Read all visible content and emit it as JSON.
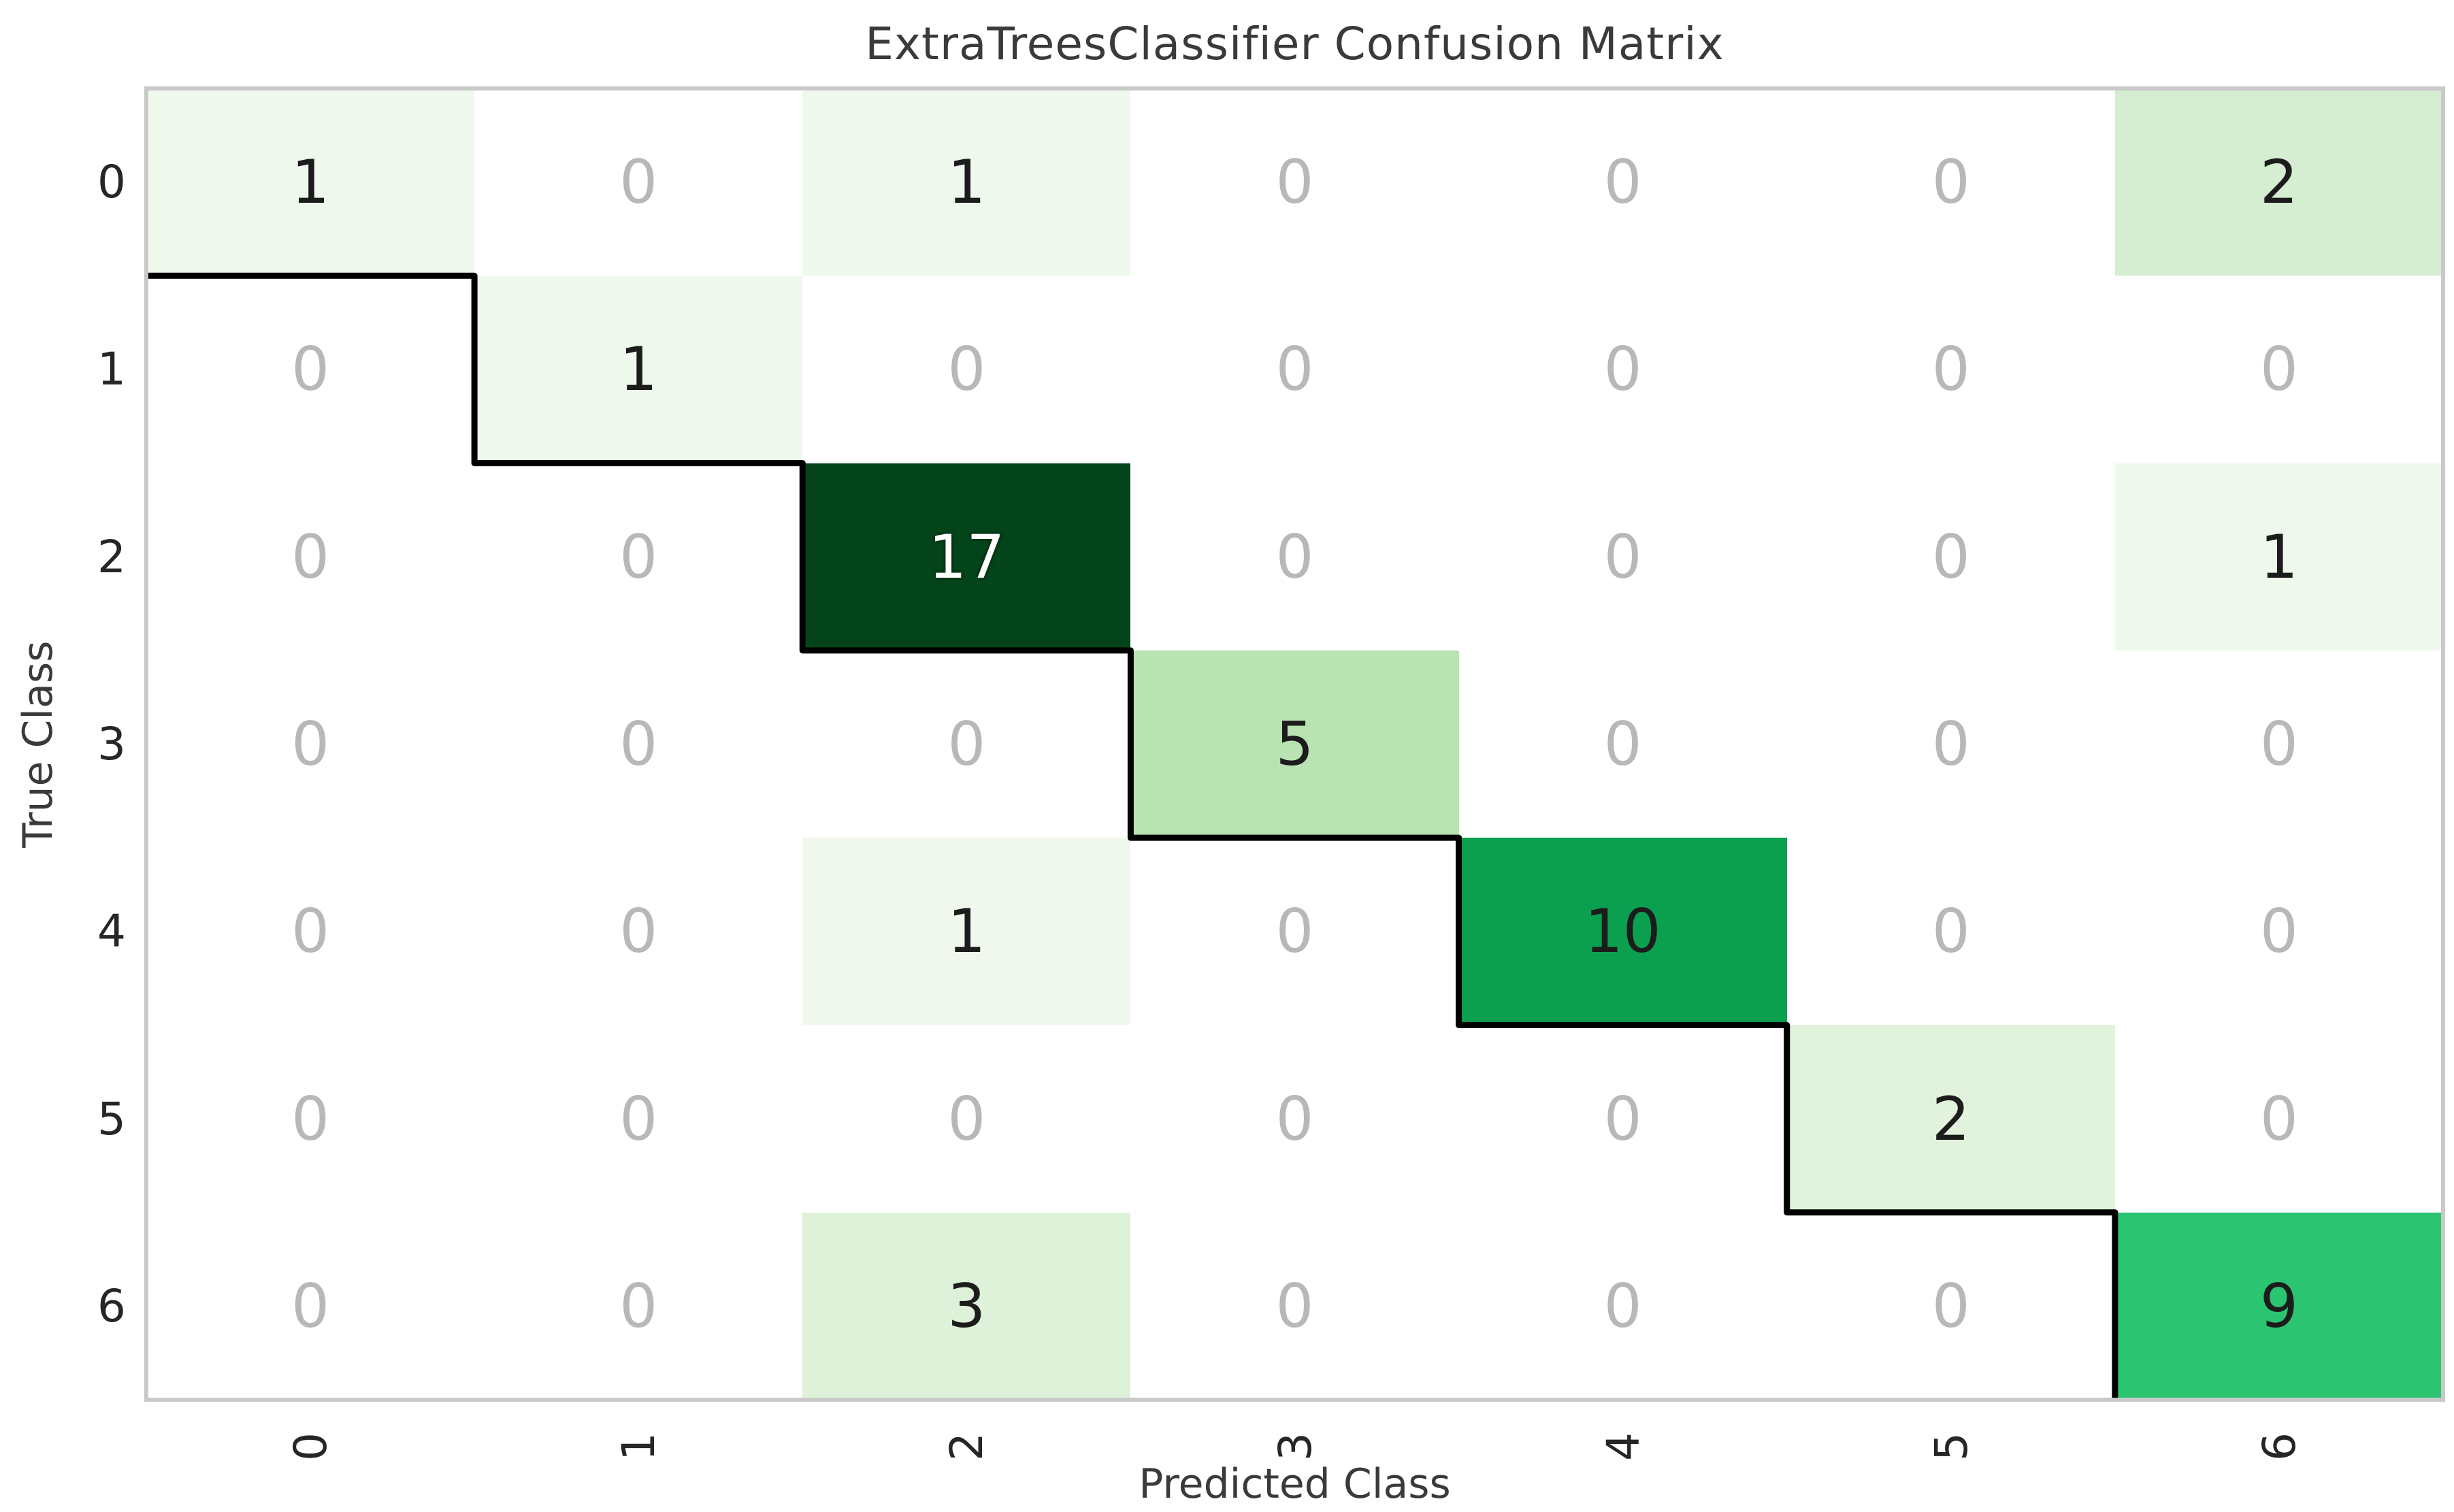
{
  "chart_data": {
    "type": "heatmap",
    "title": "ExtraTreesClassifier Confusion Matrix",
    "xlabel": "Predicted Class",
    "ylabel": "True Class",
    "x_ticklabels": [
      "0",
      "1",
      "2",
      "3",
      "4",
      "5",
      "6"
    ],
    "y_ticklabels": [
      "0",
      "1",
      "2",
      "3",
      "4",
      "5",
      "6"
    ],
    "matrix": [
      [
        1,
        0,
        1,
        0,
        0,
        0,
        2
      ],
      [
        0,
        1,
        0,
        0,
        0,
        0,
        0
      ],
      [
        0,
        0,
        17,
        0,
        0,
        0,
        1
      ],
      [
        0,
        0,
        0,
        5,
        0,
        0,
        0
      ],
      [
        0,
        0,
        1,
        0,
        10,
        0,
        0
      ],
      [
        0,
        0,
        0,
        0,
        0,
        2,
        0
      ],
      [
        0,
        0,
        3,
        0,
        0,
        0,
        9
      ]
    ],
    "value_range": [
      0,
      17
    ],
    "grid": false,
    "legend": "none",
    "cell_colors": [
      [
        "#eff8ed",
        "#ffffff",
        "#eff8ed",
        "#ffffff",
        "#ffffff",
        "#ffffff",
        "#d5edd0"
      ],
      [
        "#ffffff",
        "#eff8ed",
        "#ffffff",
        "#ffffff",
        "#ffffff",
        "#ffffff",
        "#ffffff"
      ],
      [
        "#ffffff",
        "#ffffff",
        "#04441b",
        "#ffffff",
        "#ffffff",
        "#ffffff",
        "#eff8ed"
      ],
      [
        "#ffffff",
        "#ffffff",
        "#ffffff",
        "#b9e3b2",
        "#ffffff",
        "#ffffff",
        "#ffffff"
      ],
      [
        "#ffffff",
        "#ffffff",
        "#f0f8ee",
        "#ffffff",
        "#0aa050",
        "#ffffff",
        "#ffffff"
      ],
      [
        "#ffffff",
        "#ffffff",
        "#ffffff",
        "#ffffff",
        "#ffffff",
        "#e1f3dd",
        "#ffffff"
      ],
      [
        "#ffffff",
        "#ffffff",
        "#def2d9",
        "#ffffff",
        "#ffffff",
        "#ffffff",
        "#2bc470"
      ]
    ],
    "text_colors": [
      [
        "#1c1c1c",
        "#b8b8b8",
        "#1c1c1c",
        "#b8b8b8",
        "#b8b8b8",
        "#b8b8b8",
        "#1c1c1c"
      ],
      [
        "#b8b8b8",
        "#1c1c1c",
        "#b8b8b8",
        "#b8b8b8",
        "#b8b8b8",
        "#b8b8b8",
        "#b8b8b8"
      ],
      [
        "#b8b8b8",
        "#b8b8b8",
        "#ffffff",
        "#b8b8b8",
        "#b8b8b8",
        "#b8b8b8",
        "#1c1c1c"
      ],
      [
        "#b8b8b8",
        "#b8b8b8",
        "#b8b8b8",
        "#1c1c1c",
        "#b8b8b8",
        "#b8b8b8",
        "#b8b8b8"
      ],
      [
        "#b8b8b8",
        "#b8b8b8",
        "#1c1c1c",
        "#b8b8b8",
        "#1c1c1c",
        "#b8b8b8",
        "#b8b8b8"
      ],
      [
        "#b8b8b8",
        "#b8b8b8",
        "#b8b8b8",
        "#b8b8b8",
        "#b8b8b8",
        "#1c1c1c",
        "#b8b8b8"
      ],
      [
        "#b8b8b8",
        "#b8b8b8",
        "#1c1c1c",
        "#b8b8b8",
        "#b8b8b8",
        "#b8b8b8",
        "#1c1c1c"
      ]
    ],
    "styles": {
      "diagonal_line_color": "#000000",
      "axes_border_color": "#c9c9c9",
      "title_color": "#3a3a3a",
      "tick_color": "#262626",
      "zero_text_color": "#b8b8b8",
      "background": "#ffffff"
    }
  }
}
